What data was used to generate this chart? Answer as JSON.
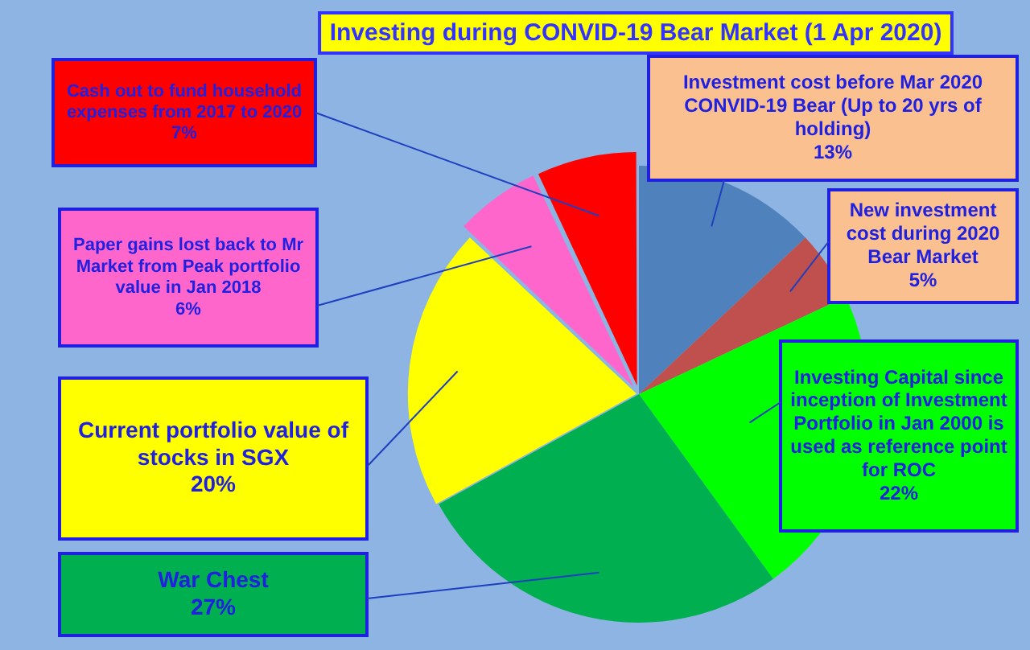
{
  "chart_data": {
    "type": "pie",
    "title": "Investing during CONVID-19 Bear Market (1 Apr 2020)",
    "categories": [
      "Investment cost before Mar 2020 CONVID-19 Bear (Up to 20 yrs of holding)",
      "New investment cost during 2020 Bear Market",
      "Investing Capital since inception of Investment Portfolio in Jan 2000 is used as reference point for ROC",
      "War Chest",
      "Current portfolio value of stocks in SGX",
      "Paper gains lost back to Mr Market from Peak portfolio value in Jan 2018",
      "Cash out to fund household expenses from 2017 to 2020"
    ],
    "values": [
      13,
      5,
      22,
      27,
      20,
      6,
      7
    ],
    "value_labels": [
      "13%",
      "5%",
      "22%",
      "27%",
      "20%",
      "6%",
      "7%"
    ],
    "colors": [
      "#4f81bd",
      "#c0504d",
      "#00ff00",
      "#00b050",
      "#ffff00",
      "#ff66cc",
      "#ff0000"
    ],
    "legend": false
  }
}
